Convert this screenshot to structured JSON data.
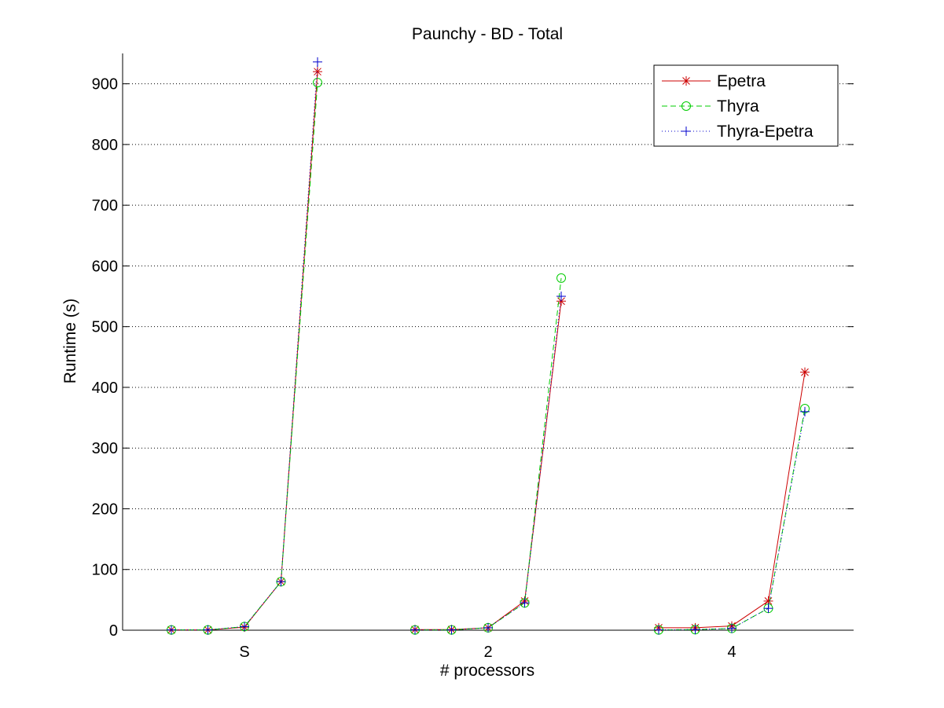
{
  "chart_data": {
    "type": "line",
    "title": "Paunchy - BD - Total",
    "xlabel": "# processors",
    "ylabel": "Runtime (s)",
    "ylim": [
      0,
      950
    ],
    "yticks": [
      0,
      100,
      200,
      300,
      400,
      500,
      600,
      700,
      800,
      900
    ],
    "grid": "horizontal dotted",
    "legend_position": "top-right",
    "groups": [
      {
        "label": "S",
        "x": [
          1.0,
          1.15,
          1.3,
          1.45,
          1.6
        ]
      },
      {
        "label": "2",
        "x": [
          2.0,
          2.15,
          2.3,
          2.45,
          2.6
        ]
      },
      {
        "label": "4",
        "x": [
          3.0,
          3.15,
          3.3,
          3.45,
          3.6
        ]
      }
    ],
    "xlim": [
      0.8,
      3.8
    ],
    "series": [
      {
        "name": "Epetra",
        "color": "#cc0000",
        "dash": "",
        "marker": "asterisk",
        "values": [
          [
            0.5,
            0.5,
            5,
            80,
            920
          ],
          [
            1,
            1,
            4,
            48,
            542
          ],
          [
            4,
            4,
            7,
            48,
            425
          ]
        ]
      },
      {
        "name": "Thyra",
        "color": "#00cc00",
        "dash": "7,4",
        "marker": "circle",
        "values": [
          [
            0.5,
            0.5,
            6,
            80,
            902
          ],
          [
            0.5,
            0.5,
            4,
            45,
            580
          ],
          [
            0.5,
            1,
            3,
            36,
            365
          ]
        ]
      },
      {
        "name": "Thyra-Epetra",
        "color": "#0000cc",
        "dash": "1,3",
        "marker": "plus",
        "values": [
          [
            0.5,
            0.5,
            6,
            80,
            936
          ],
          [
            0.5,
            0.5,
            4,
            45,
            550
          ],
          [
            0.5,
            1,
            3,
            36,
            360
          ]
        ]
      }
    ]
  }
}
